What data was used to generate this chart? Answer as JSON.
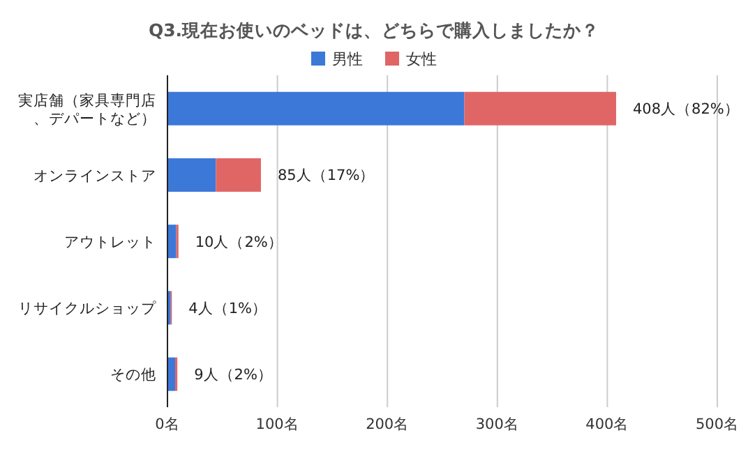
{
  "chart_data": {
    "type": "bar",
    "orientation": "horizontal",
    "stacked": true,
    "title": "Q3.現在お使いのベッドは、どちらで購入しましたか？",
    "categories": [
      "実店舗（家具専門店、デパートなど）",
      "オンラインストア",
      "アウトレット",
      "リサイクルショップ",
      "その他"
    ],
    "series": [
      {
        "name": "男性",
        "color": "#3c78d8",
        "values": [
          270,
          44,
          8,
          3,
          7
        ]
      },
      {
        "name": "女性",
        "color": "#e06666",
        "values": [
          138,
          41,
          2,
          1,
          2
        ]
      }
    ],
    "totals": [
      "408人（82%）",
      "85人（17%）",
      "10人（2%）",
      "4人（1%）",
      "9人（2%）"
    ],
    "xlim": [
      0,
      500
    ],
    "xticks": [
      {
        "value": 0,
        "label": "0名"
      },
      {
        "value": 100,
        "label": "100名"
      },
      {
        "value": 200,
        "label": "200名"
      },
      {
        "value": 300,
        "label": "300名"
      },
      {
        "value": 400,
        "label": "400名"
      },
      {
        "value": 500,
        "label": "500名"
      }
    ],
    "grid": "x",
    "legend": "top"
  }
}
